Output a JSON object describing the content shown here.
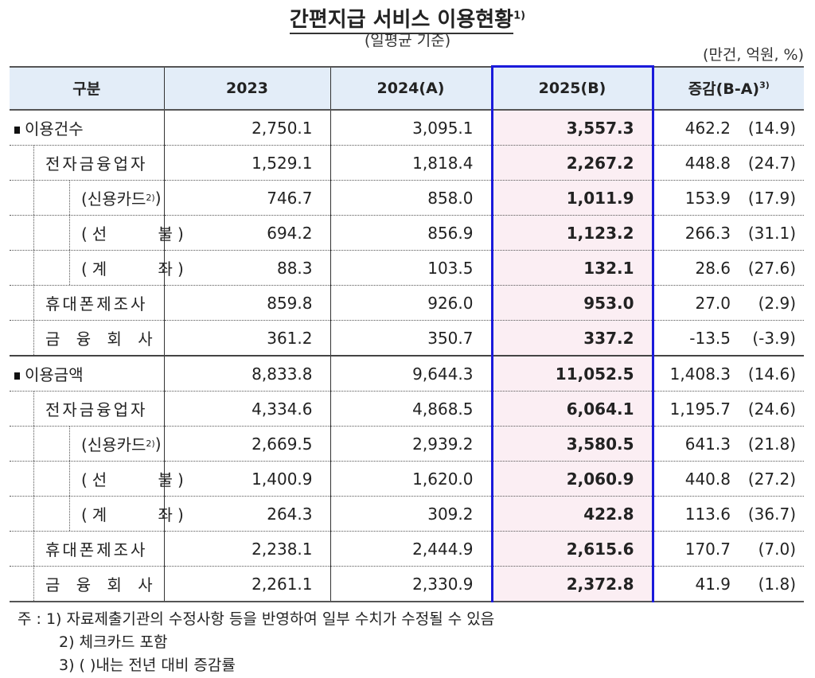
{
  "title": "간편지급 서비스 이용현황",
  "title_sup": "1)",
  "subtitle": "(일평균 기준)",
  "unit": "(만건, 억원, %)",
  "table": {
    "headers": {
      "category": "구분",
      "y2023": "2023",
      "y2024": "2024(A)",
      "y2025": "2025(B)",
      "change": "증감(B-A)",
      "change_sup": "3)"
    },
    "rows": [
      {
        "label": "이용건수",
        "level": 0,
        "y2023": "2,750.1",
        "y2024": "3,095.1",
        "y2025": "3,557.3",
        "change": "462.2",
        "pct": "(14.9)"
      },
      {
        "label": "전자금융업자",
        "level": 1,
        "y2023": "1,529.1",
        "y2024": "1,818.4",
        "y2025": "2,267.2",
        "change": "448.8",
        "pct": "(24.7)"
      },
      {
        "label": "(신용카드",
        "label_sup": "2)",
        "label_tail": ")",
        "level": 2,
        "y2023": "746.7",
        "y2024": "858.0",
        "y2025": "1,011.9",
        "change": "153.9",
        "pct": "(17.9)"
      },
      {
        "label": "(선 불)",
        "level": 2,
        "y2023": "694.2",
        "y2024": "856.9",
        "y2025": "1,123.2",
        "change": "266.3",
        "pct": "(31.1)"
      },
      {
        "label": "(계 좌)",
        "level": 2,
        "y2023": "88.3",
        "y2024": "103.5",
        "y2025": "132.1",
        "change": "28.6",
        "pct": "(27.6)"
      },
      {
        "label": "휴대폰제조사",
        "level": 1,
        "y2023": "859.8",
        "y2024": "926.0",
        "y2025": "953.0",
        "change": "27.0",
        "pct": "(2.9)"
      },
      {
        "label": "금 융 회 사",
        "level": 1,
        "y2023": "361.2",
        "y2024": "350.7",
        "y2025": "337.2",
        "change": "-13.5",
        "pct": "(-3.9)"
      },
      {
        "label": "이용금액",
        "level": 0,
        "y2023": "8,833.8",
        "y2024": "9,644.3",
        "y2025": "11,052.5",
        "change": "1,408.3",
        "pct": "(14.6)"
      },
      {
        "label": "전자금융업자",
        "level": 1,
        "y2023": "4,334.6",
        "y2024": "4,868.5",
        "y2025": "6,064.1",
        "change": "1,195.7",
        "pct": "(24.6)"
      },
      {
        "label": "(신용카드",
        "label_sup": "2)",
        "label_tail": ")",
        "level": 2,
        "y2023": "2,669.5",
        "y2024": "2,939.2",
        "y2025": "3,580.5",
        "change": "641.3",
        "pct": "(21.8)"
      },
      {
        "label": "(선 불)",
        "level": 2,
        "y2023": "1,400.9",
        "y2024": "1,620.0",
        "y2025": "2,060.9",
        "change": "440.8",
        "pct": "(27.2)"
      },
      {
        "label": "(계 좌)",
        "level": 2,
        "y2023": "264.3",
        "y2024": "309.2",
        "y2025": "422.8",
        "change": "113.6",
        "pct": "(36.7)"
      },
      {
        "label": "휴대폰제조사",
        "level": 1,
        "y2023": "2,238.1",
        "y2024": "2,444.9",
        "y2025": "2,615.6",
        "change": "170.7",
        "pct": "(7.0)"
      },
      {
        "label": "금 융 회 사",
        "level": 1,
        "y2023": "2,261.1",
        "y2024": "2,330.9",
        "y2025": "2,372.8",
        "change": "41.9",
        "pct": "(1.8)"
      }
    ]
  },
  "notes": [
    "주 : 1) 자료제출기관의 수정사항 등을 반영하여 일부 수치가 수정될 수 있음",
    "2) 체크카드 포함",
    "3) (  )내는 전년 대비 증감률"
  ],
  "colors": {
    "header_bg": "#e3edf8",
    "highlight_bg": "#fbeef3",
    "highlight_border": "#1a1adb"
  }
}
